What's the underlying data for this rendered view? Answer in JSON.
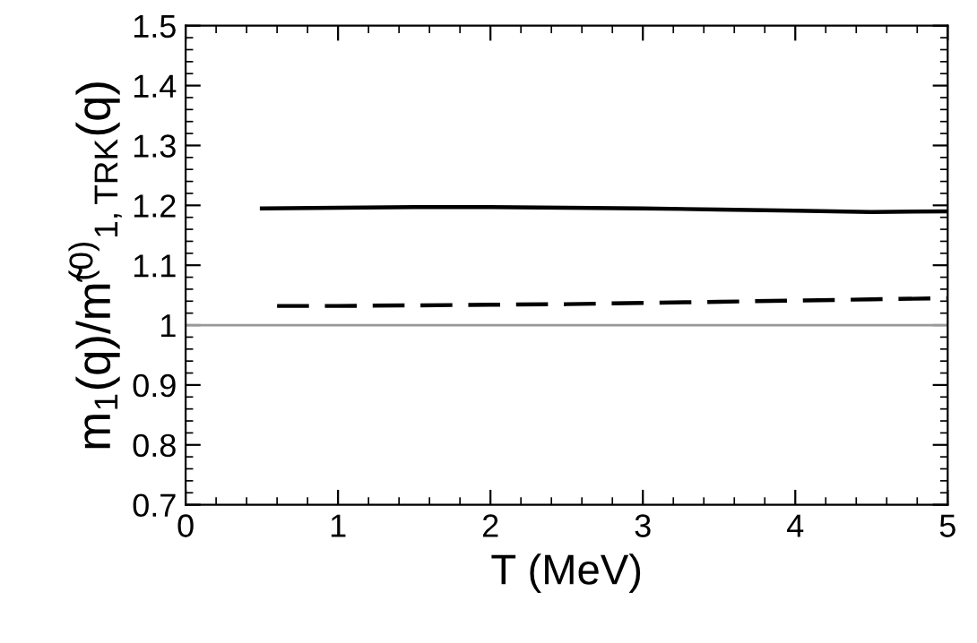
{
  "chart_data": {
    "type": "line",
    "xlabel": "T (MeV)",
    "ylabel": "m$_{1}$(q)/m̃$^{(0)}$$_{1,TRK}$(q)",
    "xlim": [
      0,
      5
    ],
    "xticks": [
      0,
      1,
      2,
      3,
      4,
      5
    ],
    "ylim": [
      0.7,
      1.5
    ],
    "yticks": [
      0.7,
      0.8,
      0.9,
      1,
      1.1,
      1.2,
      1.3,
      1.4,
      1.5
    ],
    "grid": false,
    "legend": false,
    "marker": "none",
    "series": [
      {
        "color": "#000000",
        "line_style": "solid",
        "x": [
          0.5,
          1,
          1.5,
          2,
          2.5,
          3,
          3.5,
          4,
          4.5,
          5
        ],
        "values": [
          1.195,
          1.196,
          1.197,
          1.197,
          1.196,
          1.195,
          1.193,
          1.191,
          1.189,
          1.19
        ]
      },
      {
        "color": "#000000",
        "line_style": "dashed",
        "x": [
          0.6,
          1,
          1.5,
          2,
          2.5,
          3,
          3.5,
          4,
          4.5,
          5
        ],
        "values": [
          1.032,
          1.032,
          1.033,
          1.034,
          1.035,
          1.037,
          1.039,
          1.041,
          1.043,
          1.045
        ]
      }
    ],
    "ref_lines": [
      {
        "axis": "y",
        "value": 1,
        "color": "#999999",
        "line_style": "solid"
      }
    ]
  }
}
